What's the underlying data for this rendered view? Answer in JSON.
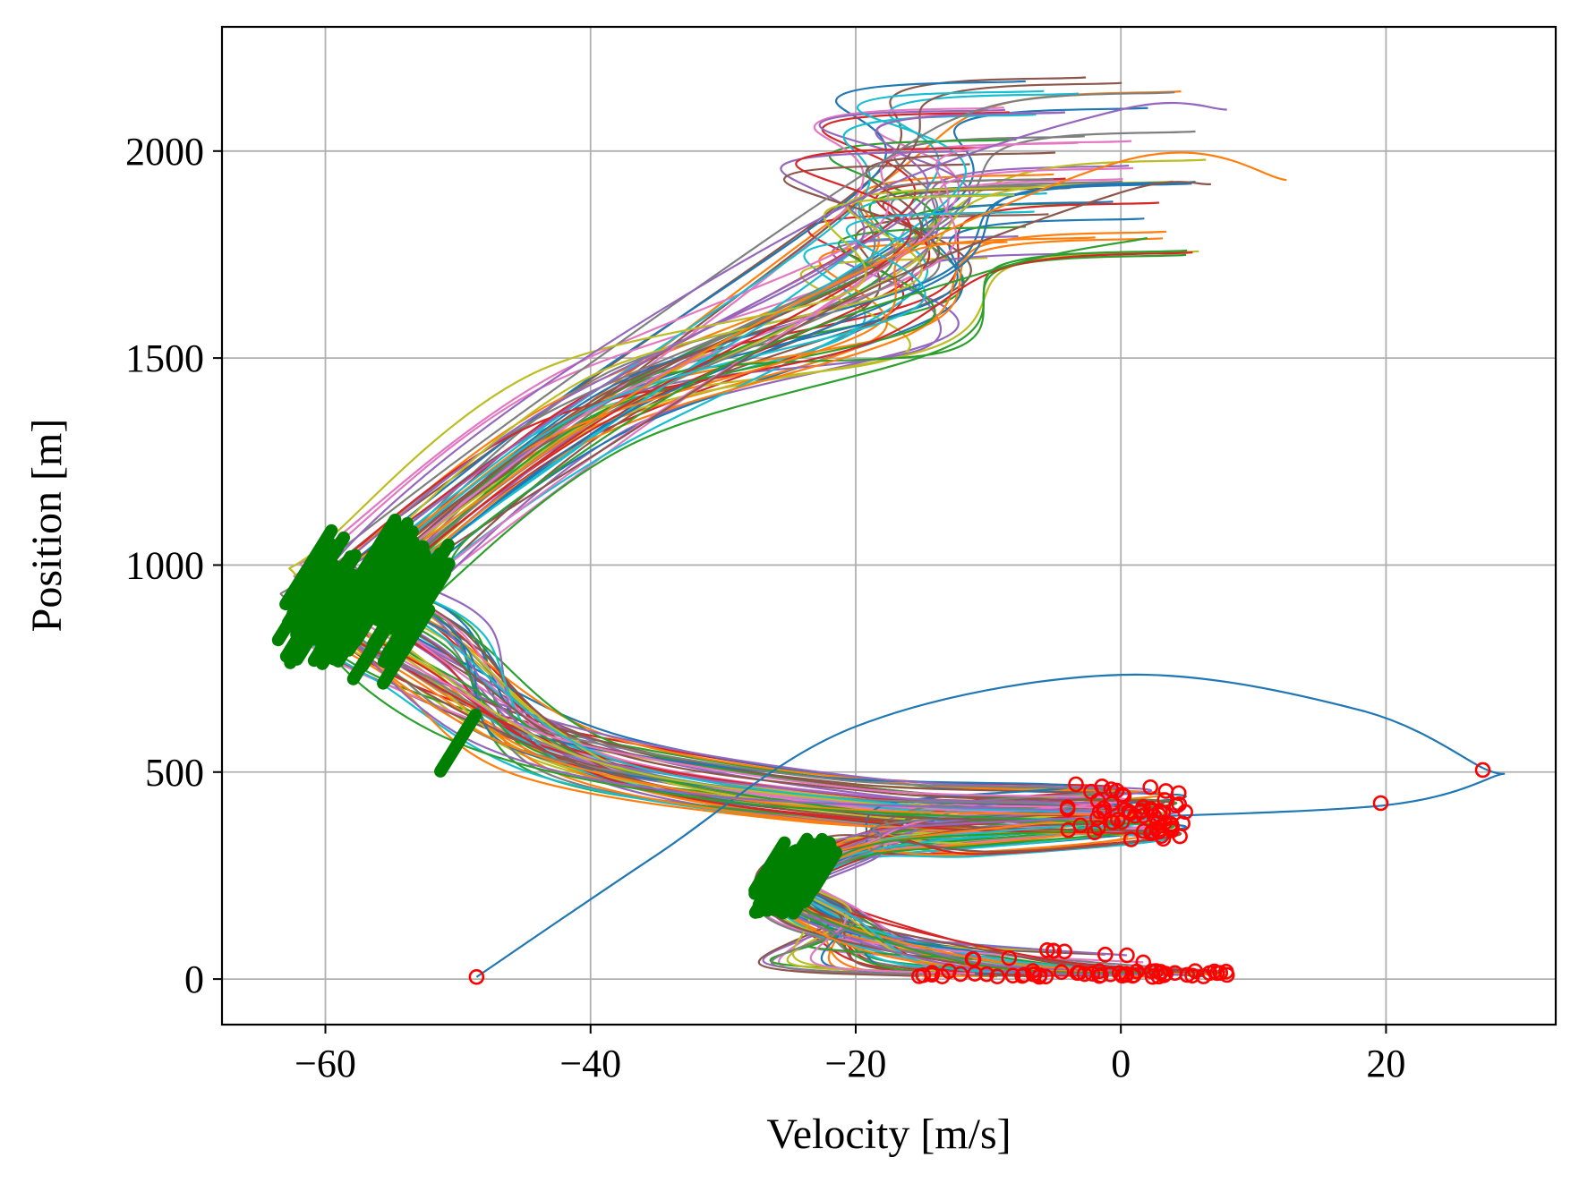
{
  "chart_data": {
    "type": "line",
    "title": "",
    "xlabel": "Velocity [m/s]",
    "ylabel": "Position [m]",
    "xlim": [
      -67.8,
      32.8
    ],
    "ylim": [
      -110,
      2300
    ],
    "xticks": [
      -60,
      -40,
      -20,
      0,
      20
    ],
    "xtick_labels": [
      "−60",
      "−40",
      "−20",
      "0",
      "20"
    ],
    "yticks": [
      0,
      500,
      1000,
      1500,
      2000
    ],
    "ytick_labels": [
      "0",
      "500",
      "1000",
      "1500",
      "2000"
    ],
    "grid": true,
    "legend": "none",
    "trajectory_count": 60,
    "series_colors": [
      "#1f77b4",
      "#ff7f0e",
      "#2ca02c",
      "#d62728",
      "#9467bd",
      "#8c564b",
      "#e377c2",
      "#7f7f7f",
      "#bcbd22",
      "#17becf"
    ],
    "marker_colors": {
      "start": "#ff0000",
      "switch": "#008000"
    },
    "representative_series": [
      {
        "color": "#1f77b4",
        "points": [
          [
            -48.6,
            5
          ],
          [
            -35,
            300
          ],
          [
            -20,
            610
          ],
          [
            0,
            735
          ],
          [
            18,
            650
          ],
          [
            27.3,
            510
          ],
          [
            28.2,
            490
          ],
          [
            20,
            420
          ],
          [
            0,
            390
          ]
        ],
        "start_marker": [
          -48.6,
          5
        ],
        "switch_markers": [
          [
            27.3,
            505
          ],
          [
            19.6,
            425
          ]
        ]
      },
      {
        "color": "#8c564b",
        "points": [
          [
            7.5,
            15
          ],
          [
            -10,
            30
          ],
          [
            -24,
            120
          ],
          [
            -27,
            210
          ],
          [
            -25,
            280
          ],
          [
            -12,
            360
          ],
          [
            0,
            380
          ],
          [
            -20,
            400
          ],
          [
            -40,
            510
          ],
          [
            -56,
            760
          ],
          [
            -58,
            870
          ],
          [
            -55,
            950
          ],
          [
            -40,
            1260
          ],
          [
            -20,
            1650
          ],
          [
            0,
            1900
          ],
          [
            6.8,
            1920
          ]
        ],
        "start_marker": [
          7.5,
          15
        ],
        "switch_markers": [
          [
            -58,
            870
          ],
          [
            -26,
            230
          ]
        ]
      },
      {
        "color": "#ff7f0e",
        "points": [
          [
            8,
            10
          ],
          [
            -15,
            40
          ],
          [
            -25,
            150
          ],
          [
            -26,
            230
          ],
          [
            -20,
            320
          ],
          [
            -5,
            380
          ],
          [
            0,
            395
          ],
          [
            -25,
            420
          ],
          [
            -45,
            550
          ],
          [
            -57,
            780
          ],
          [
            -58,
            900
          ],
          [
            -50,
            1120
          ],
          [
            -30,
            1540
          ],
          [
            0,
            1975
          ],
          [
            12.5,
            1930
          ]
        ],
        "start_marker": [
          8,
          10
        ],
        "switch_markers": [
          [
            -58,
            900
          ],
          [
            -26,
            240
          ]
        ]
      },
      {
        "color": "#2ca02c",
        "points": [
          [
            3,
            15
          ],
          [
            -10,
            30
          ],
          [
            -22,
            140
          ],
          [
            -24,
            220
          ],
          [
            -18,
            330
          ],
          [
            0,
            370
          ],
          [
            -30,
            430
          ],
          [
            -50,
            570
          ],
          [
            -60,
            820
          ],
          [
            -52,
            940
          ],
          [
            -48,
            1100
          ],
          [
            -30,
            1480
          ],
          [
            -10,
            1710
          ],
          [
            2,
            1790
          ]
        ],
        "start_marker": [
          3,
          15
        ],
        "switch_markers": [
          [
            -52,
            935
          ],
          [
            -50,
            570
          ]
        ]
      },
      {
        "color": "#9467bd",
        "points": [
          [
            5,
            10
          ],
          [
            -12,
            30
          ],
          [
            -25,
            160
          ],
          [
            -25,
            270
          ],
          [
            -18,
            360
          ],
          [
            0,
            400
          ],
          [
            -30,
            440
          ],
          [
            -48,
            560
          ],
          [
            -58,
            820
          ],
          [
            -60,
            980
          ],
          [
            -45,
            1400
          ],
          [
            -20,
            1880
          ],
          [
            0,
            2100
          ],
          [
            8,
            2100
          ]
        ],
        "start_marker": [
          5,
          10
        ],
        "switch_markers": [
          [
            -61,
            985
          ],
          [
            -25,
            270
          ]
        ]
      }
    ]
  }
}
